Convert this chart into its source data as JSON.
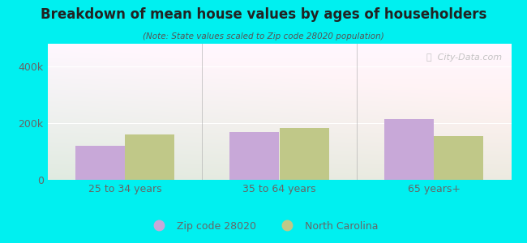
{
  "title": "Breakdown of mean house values by ages of householders",
  "subtitle": "(Note: State values scaled to Zip code 28020 population)",
  "categories": [
    "25 to 34 years",
    "35 to 64 years",
    "65 years+"
  ],
  "zip_values": [
    120000,
    170000,
    215000
  ],
  "nc_values": [
    160000,
    182000,
    155000
  ],
  "zip_color": "#c8a8d8",
  "nc_color": "#c0c888",
  "background_outer": "#00f0f0",
  "ylim": [
    0,
    480000
  ],
  "yticks": [
    0,
    200000,
    400000
  ],
  "ytick_labels": [
    "0",
    "200k",
    "400k"
  ],
  "bar_width": 0.32,
  "legend_zip_label": "Zip code 28020",
  "legend_nc_label": "North Carolina",
  "watermark": "ⓘ  City-Data.com",
  "grid_color": "#cccccc",
  "separator_color": "#aaaaaa",
  "title_color": "#222222",
  "subtitle_color": "#555555",
  "tick_color": "#666666"
}
